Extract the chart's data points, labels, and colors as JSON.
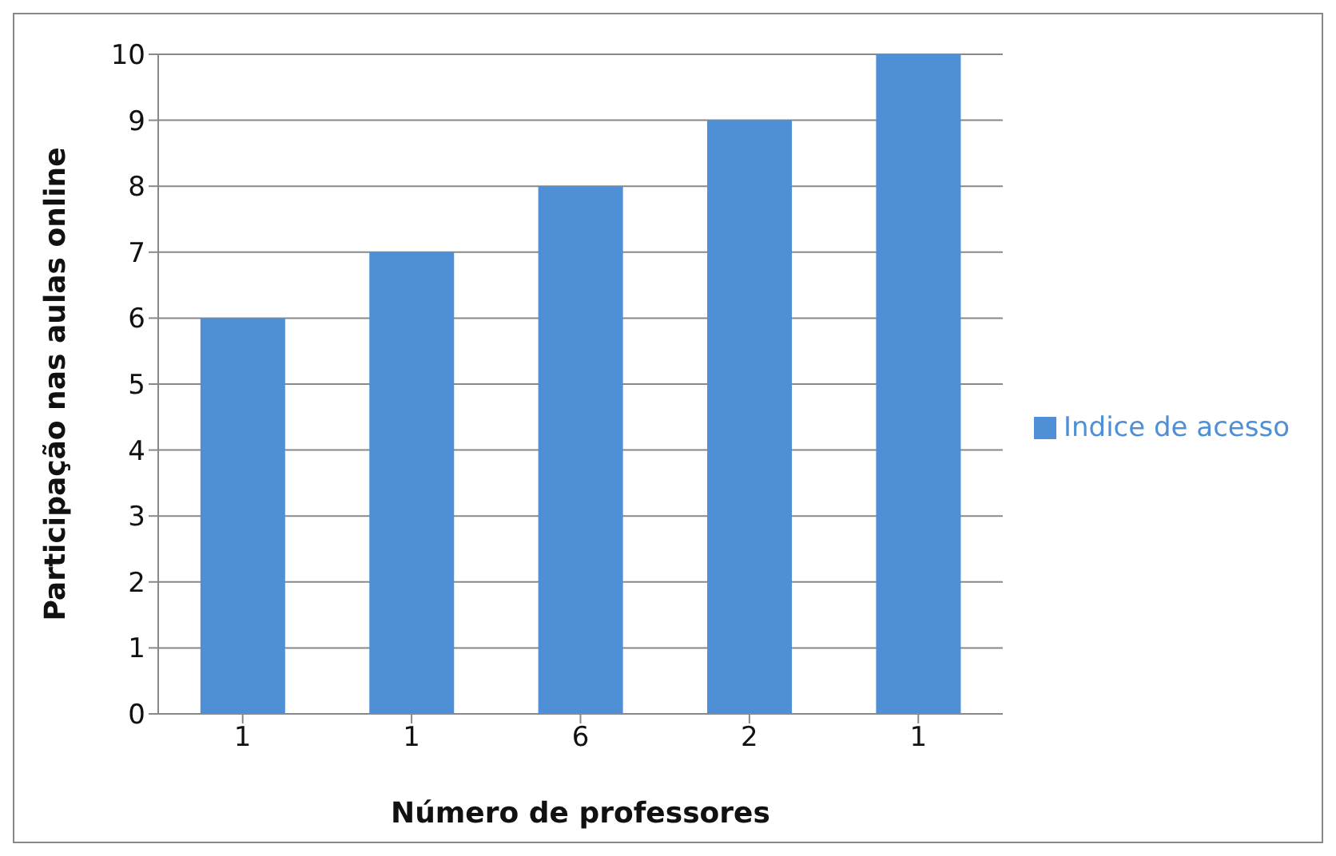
{
  "chart_data": {
    "type": "bar",
    "xlabel": "Número de professores",
    "ylabel": "Participação  nas aulas online",
    "categories": [
      "1",
      "1",
      "6",
      "2",
      "1"
    ],
    "series": [
      {
        "name": "Indice de acesso",
        "color": "#4f8fd6",
        "values": [
          6,
          7,
          8,
          9,
          10
        ]
      }
    ],
    "ylim": [
      0,
      10
    ],
    "yticks": [
      0,
      1,
      2,
      3,
      4,
      5,
      6,
      7,
      8,
      9,
      10
    ],
    "grid": "y",
    "legend": "right"
  }
}
